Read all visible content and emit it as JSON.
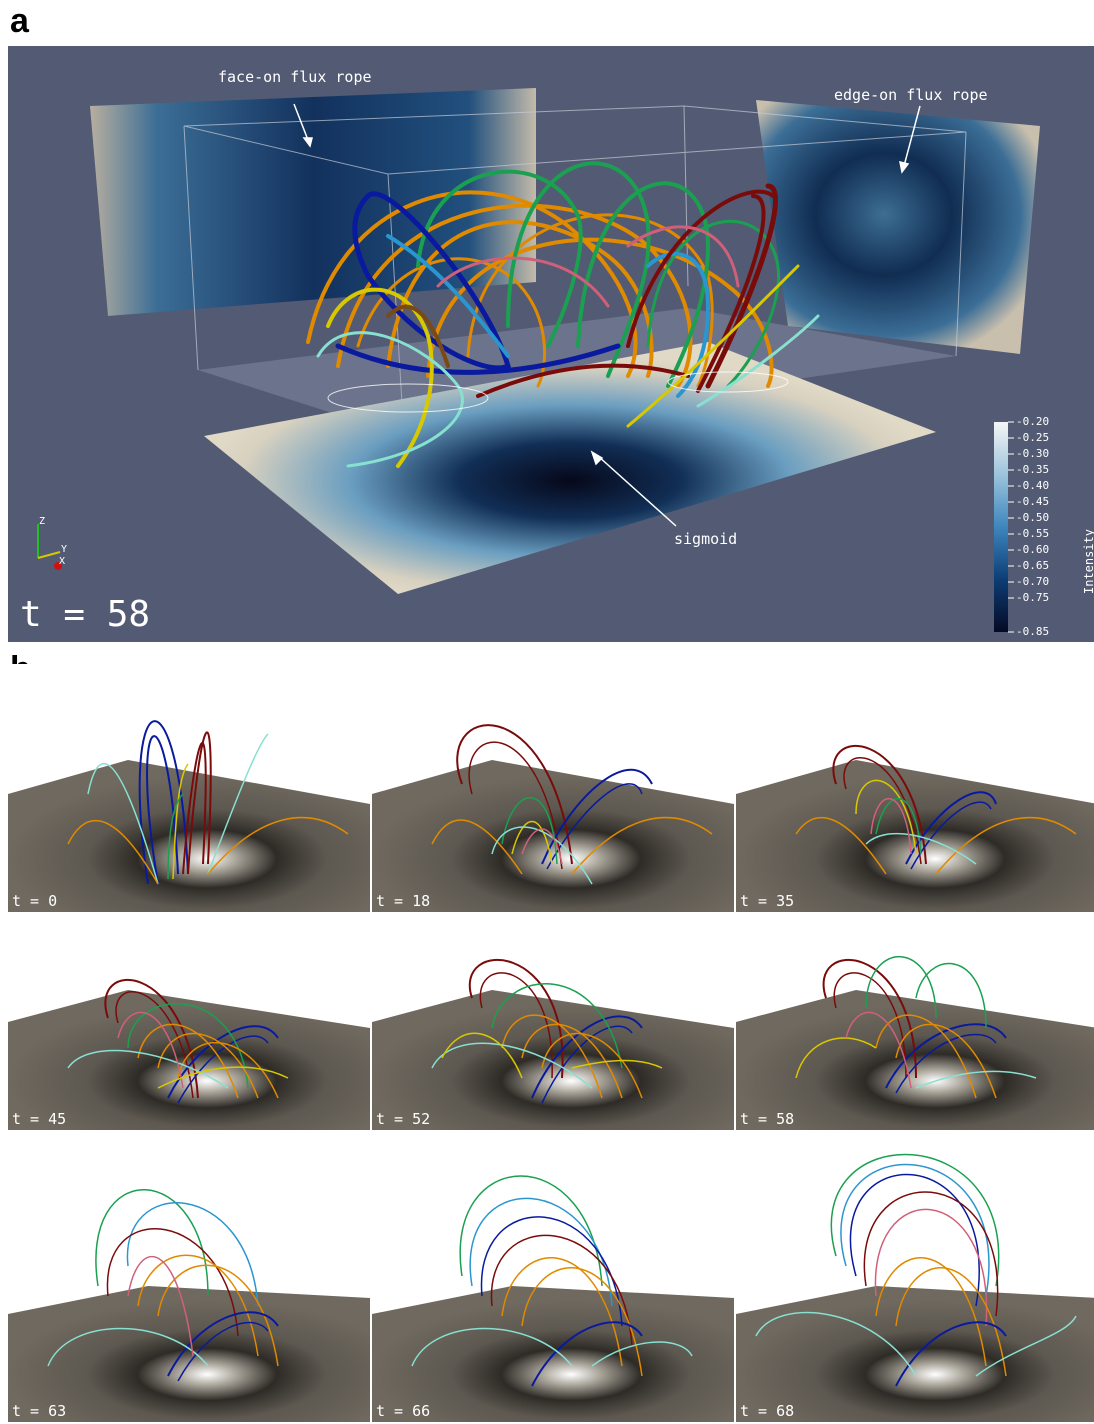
{
  "panel_a": {
    "letter": "a",
    "annotations": {
      "face_on": "face-on flux rope",
      "edge_on": "edge-on flux rope",
      "sigmoid": "sigmoid"
    },
    "time_label": "t = 58",
    "axes_labels": {
      "z": "Z",
      "y": "Y",
      "x": "X"
    },
    "colorbar": {
      "title": "Intensity",
      "ticks": [
        "-0.20",
        "-0.25",
        "-0.30",
        "-0.35",
        "-0.40",
        "-0.45",
        "-0.50",
        "-0.55",
        "-0.60",
        "-0.65",
        "-0.70",
        "-0.75",
        "-0.85"
      ],
      "colors": [
        "#f5f5f5",
        "#9cc4dc",
        "#3e86bd",
        "#0d3d75",
        "#050a24"
      ]
    }
  },
  "panel_b": {
    "letter": "b",
    "frames": [
      {
        "label": "t = 0"
      },
      {
        "label": "t = 18"
      },
      {
        "label": "t = 35"
      },
      {
        "label": "t = 45"
      },
      {
        "label": "t = 52"
      },
      {
        "label": "t = 58"
      },
      {
        "label": "t = 63"
      },
      {
        "label": "t = 66"
      },
      {
        "label": "t = 68"
      }
    ]
  },
  "colors": {
    "panel_a_background": "#535a73",
    "panel_b_plane": "#6b655c",
    "field_lines": [
      "#0a1a9e",
      "#7a0b0b",
      "#e08a00",
      "#1aa050",
      "#d8c800",
      "#2a96d0",
      "#d0607a",
      "#88e0d0",
      "#7a4a12"
    ]
  }
}
